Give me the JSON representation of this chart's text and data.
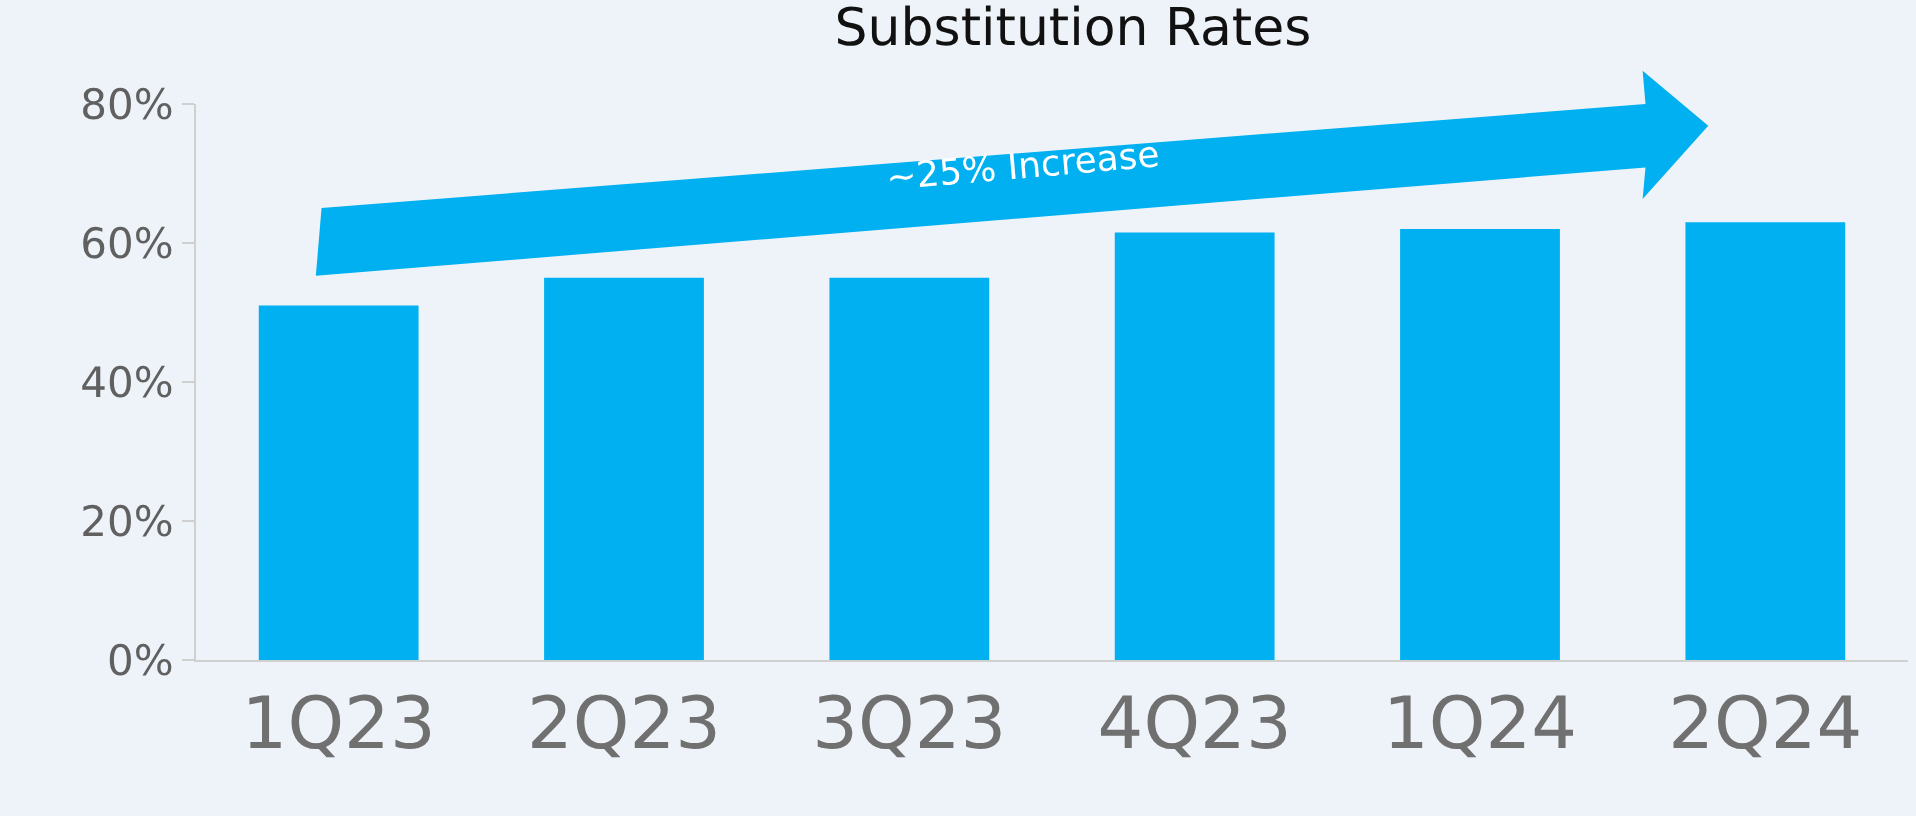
{
  "chart_data": {
    "type": "bar",
    "title": "Substitution Rates",
    "categories": [
      "1Q23",
      "2Q23",
      "3Q23",
      "4Q23",
      "1Q24",
      "2Q24"
    ],
    "values": [
      51,
      55,
      55,
      61.5,
      62,
      63
    ],
    "color": "#00b0f0",
    "ylim": [
      0,
      80
    ],
    "yticks": [
      {
        "value": 0,
        "label": "0%"
      },
      {
        "value": 20,
        "label": "20%"
      },
      {
        "value": 40,
        "label": "40%"
      },
      {
        "value": 60,
        "label": "60%"
      },
      {
        "value": 80,
        "label": "80%"
      }
    ],
    "grid": false,
    "annotations": [
      "~25% Increase"
    ]
  }
}
